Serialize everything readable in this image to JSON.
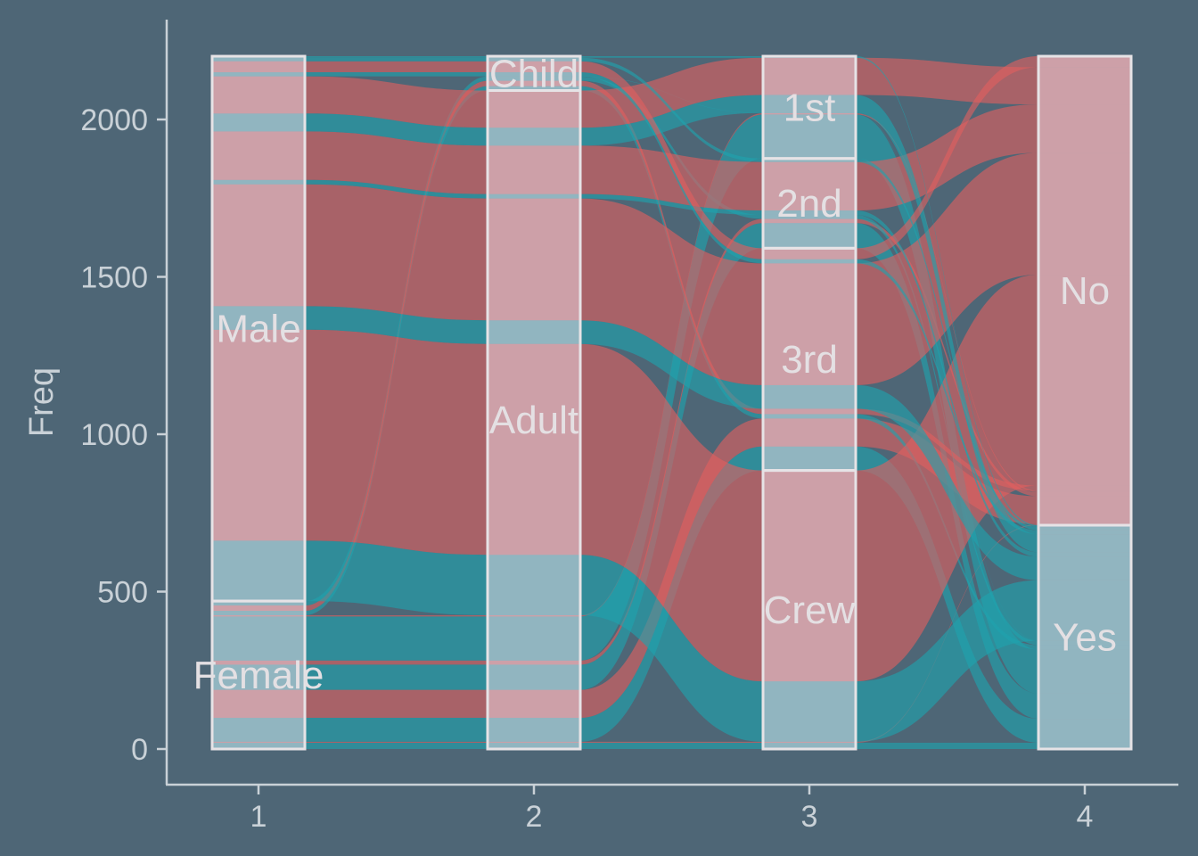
{
  "chart_data": {
    "type": "alluvial",
    "ylabel": "Freq",
    "ylim": [
      -100,
      2320
    ],
    "y_ticks": [
      0,
      500,
      1000,
      1500,
      2000
    ],
    "x_ticks": [
      "1",
      "2",
      "3",
      "4"
    ],
    "axes": [
      {
        "strata": [
          {
            "label": "Female",
            "value": 470
          },
          {
            "label": "Male",
            "value": 1731
          }
        ]
      },
      {
        "strata": [
          {
            "label": "Adult",
            "value": 2092
          },
          {
            "label": "Child",
            "value": 109
          }
        ]
      },
      {
        "strata": [
          {
            "label": "Crew",
            "value": 885
          },
          {
            "label": "3rd",
            "value": 706
          },
          {
            "label": "2nd",
            "value": 285
          },
          {
            "label": "1st",
            "value": 325
          }
        ]
      },
      {
        "strata": [
          {
            "label": "Yes",
            "value": 711
          },
          {
            "label": "No",
            "value": 1490
          }
        ]
      }
    ],
    "flows": [
      {
        "sex": "Female",
        "age": "Adult",
        "cls": "Crew",
        "surv": "Yes",
        "value": 20,
        "group": "Yes"
      },
      {
        "sex": "Female",
        "age": "Adult",
        "cls": "Crew",
        "surv": "No",
        "value": 3,
        "group": "No"
      },
      {
        "sex": "Female",
        "age": "Adult",
        "cls": "3rd",
        "surv": "Yes",
        "value": 76,
        "group": "Yes"
      },
      {
        "sex": "Female",
        "age": "Adult",
        "cls": "3rd",
        "surv": "No",
        "value": 89,
        "group": "No"
      },
      {
        "sex": "Female",
        "age": "Adult",
        "cls": "2nd",
        "surv": "Yes",
        "value": 80,
        "group": "Yes"
      },
      {
        "sex": "Female",
        "age": "Adult",
        "cls": "2nd",
        "surv": "No",
        "value": 13,
        "group": "No"
      },
      {
        "sex": "Female",
        "age": "Adult",
        "cls": "1st",
        "surv": "Yes",
        "value": 140,
        "group": "Yes"
      },
      {
        "sex": "Female",
        "age": "Adult",
        "cls": "1st",
        "surv": "No",
        "value": 4,
        "group": "No"
      },
      {
        "sex": "Female",
        "age": "Child",
        "cls": "3rd",
        "surv": "Yes",
        "value": 14,
        "group": "Yes"
      },
      {
        "sex": "Female",
        "age": "Child",
        "cls": "3rd",
        "surv": "No",
        "value": 17,
        "group": "No"
      },
      {
        "sex": "Female",
        "age": "Child",
        "cls": "2nd",
        "surv": "Yes",
        "value": 13,
        "group": "Yes"
      },
      {
        "sex": "Female",
        "age": "Child",
        "cls": "1st",
        "surv": "Yes",
        "value": 1,
        "group": "Yes"
      },
      {
        "sex": "Male",
        "age": "Adult",
        "cls": "Crew",
        "surv": "Yes",
        "value": 192,
        "group": "Yes"
      },
      {
        "sex": "Male",
        "age": "Adult",
        "cls": "Crew",
        "surv": "No",
        "value": 670,
        "group": "No"
      },
      {
        "sex": "Male",
        "age": "Adult",
        "cls": "3rd",
        "surv": "Yes",
        "value": 75,
        "group": "Yes"
      },
      {
        "sex": "Male",
        "age": "Adult",
        "cls": "3rd",
        "surv": "No",
        "value": 387,
        "group": "No"
      },
      {
        "sex": "Male",
        "age": "Adult",
        "cls": "2nd",
        "surv": "Yes",
        "value": 14,
        "group": "Yes"
      },
      {
        "sex": "Male",
        "age": "Adult",
        "cls": "2nd",
        "surv": "No",
        "value": 154,
        "group": "No"
      },
      {
        "sex": "Male",
        "age": "Adult",
        "cls": "1st",
        "surv": "Yes",
        "value": 57,
        "group": "Yes"
      },
      {
        "sex": "Male",
        "age": "Adult",
        "cls": "1st",
        "surv": "No",
        "value": 118,
        "group": "No"
      },
      {
        "sex": "Male",
        "age": "Child",
        "cls": "3rd",
        "surv": "Yes",
        "value": 13,
        "group": "Yes"
      },
      {
        "sex": "Male",
        "age": "Child",
        "cls": "3rd",
        "surv": "No",
        "value": 35,
        "group": "No"
      },
      {
        "sex": "Male",
        "age": "Child",
        "cls": "2nd",
        "surv": "Yes",
        "value": 11,
        "group": "Yes"
      },
      {
        "sex": "Male",
        "age": "Child",
        "cls": "1st",
        "surv": "Yes",
        "value": 5,
        "group": "Yes"
      }
    ],
    "colors": {
      "background": "#4e6676",
      "flow_yes": "#1fa3ae",
      "flow_no": "#e0605f",
      "stratum_fill": "#f2dee8",
      "stratum_stroke": "#e6e3e6",
      "axis": "#c9d1d7",
      "text": "#c9d1d7",
      "label": "#e4e0e3"
    }
  }
}
